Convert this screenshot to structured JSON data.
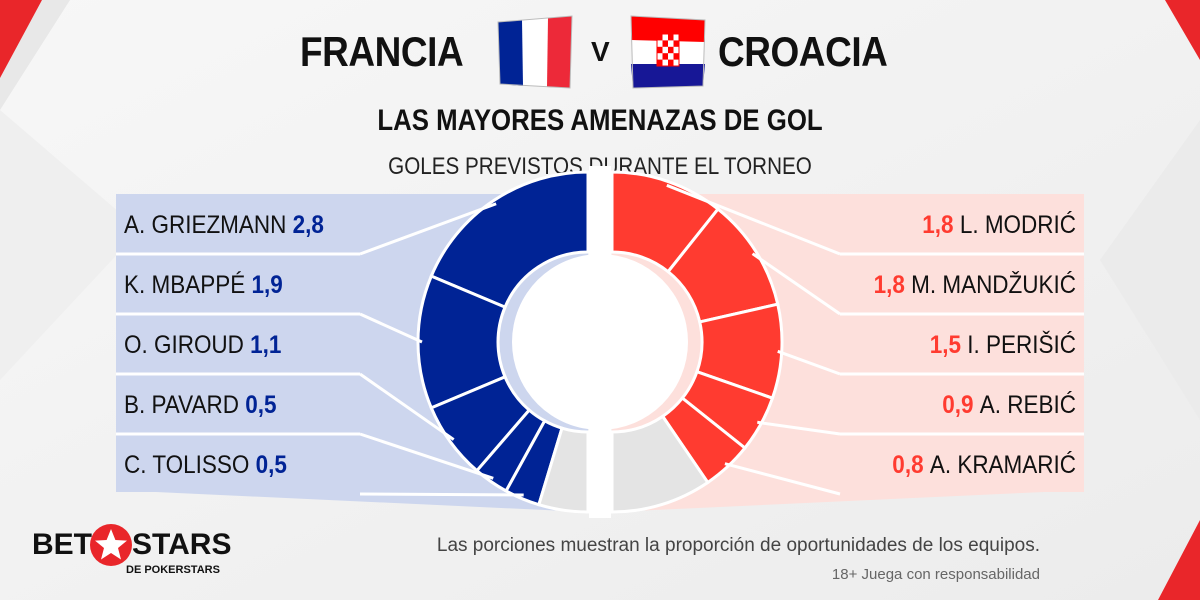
{
  "header": {
    "team_left": "FRANCIA",
    "vs": "V",
    "team_right": "CROACIA",
    "title": "LAS MAYORES AMENAZAS DE GOL",
    "subtitle": "GOLES PREVISTOS DURANTE EL TORNEO"
  },
  "colors": {
    "france": "#002395",
    "croatia": "#ff3b30",
    "france_panel": "#cdd6ee",
    "croatia_panel": "#fde0dc",
    "other": "#e4e4e4"
  },
  "chart_data": {
    "type": "pie",
    "series": [
      {
        "name": "FRANCIA",
        "side": "left",
        "categories": [
          "A. GRIEZMANN",
          "K. MBAPPÉ",
          "O. GIROUD",
          "B. PAVARD",
          "C. TOLISSO"
        ],
        "values": [
          2.8,
          1.9,
          1.1,
          0.5,
          0.5
        ],
        "labels": [
          "2,8",
          "1,9",
          "1,1",
          "0,5",
          "0,5"
        ],
        "other_value": 0.7
      },
      {
        "name": "CROACIA",
        "side": "right",
        "categories": [
          "L. MODRIĆ",
          "M. MANDŽUKIĆ",
          "I. PERIŠIĆ",
          "A. REBIĆ",
          "A. KRAMARIĆ"
        ],
        "values": [
          1.8,
          1.8,
          1.5,
          0.9,
          0.8
        ],
        "labels": [
          "1,8",
          "1,8",
          "1,5",
          "0,9",
          "0,8"
        ],
        "other_value": 1.6
      }
    ]
  },
  "footer": {
    "note": "Las porciones muestran la proporción de oportunidades de los equipos.",
    "responsible": "18+ Juega con responsabilidad",
    "logo_bet": "BET",
    "logo_stars": "STARS",
    "logo_sub": "DE POKERSTARS"
  }
}
